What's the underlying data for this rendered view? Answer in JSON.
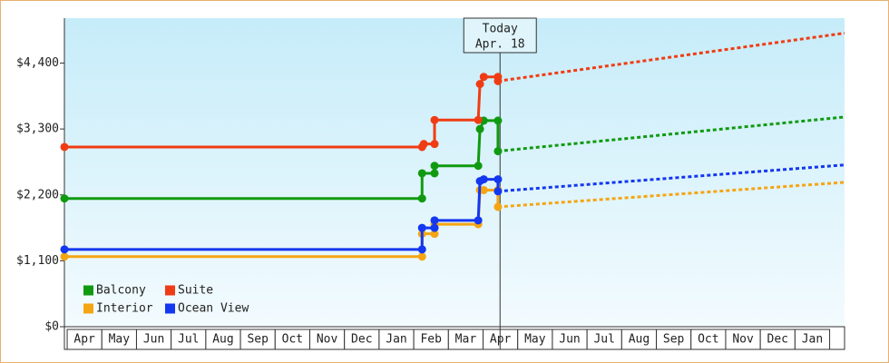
{
  "chart_data": {
    "type": "line",
    "categories": [
      "Apr",
      "May",
      "Jun",
      "Jul",
      "Aug",
      "Sep",
      "Oct",
      "Nov",
      "Dec",
      "Jan",
      "Feb",
      "Mar",
      "Apr",
      "May",
      "Jun",
      "Jul",
      "Aug",
      "Sep",
      "Oct",
      "Nov",
      "Dec",
      "Jan"
    ],
    "xlim": [
      -0.08,
      22.43
    ],
    "ylim": [
      0,
      5150
    ],
    "yticks": [
      {
        "value": 0,
        "label": "$0"
      },
      {
        "value": 1100,
        "label": "$1,100"
      },
      {
        "value": 2200,
        "label": "$2,200"
      },
      {
        "value": 3300,
        "label": "$3,300"
      },
      {
        "value": 4400,
        "label": "$4,400"
      }
    ],
    "legend": "lower left",
    "today": {
      "x": 12.49,
      "label": [
        "Today",
        "Apr. 18"
      ]
    },
    "series": [
      {
        "name": "Balcony",
        "color": "#109a10",
        "x": [
          -0.08,
          10.24,
          10.24,
          10.6,
          10.6,
          11.86,
          11.91,
          12.02,
          12.43,
          12.43
        ],
        "values": [
          2140,
          2140,
          2560,
          2560,
          2685,
          2685,
          3300,
          3440,
          3440,
          2930
        ],
        "forecast": {
          "x": [
            12.43,
            22.43
          ],
          "values": [
            2930,
            3500
          ]
        }
      },
      {
        "name": "Suite",
        "color": "#f03c14",
        "x": [
          -0.08,
          10.24,
          10.29,
          10.6,
          10.6,
          11.86,
          11.91,
          12.02,
          12.43,
          12.43
        ],
        "values": [
          3000,
          3000,
          3050,
          3050,
          3450,
          3450,
          4050,
          4170,
          4170,
          4100
        ],
        "forecast": {
          "x": [
            12.43,
            22.43
          ],
          "values": [
            4100,
            4900
          ]
        }
      },
      {
        "name": "Interior",
        "color": "#f5a514",
        "x": [
          -0.08,
          10.24,
          10.24,
          10.6,
          10.6,
          11.86,
          11.91,
          12.02,
          12.43,
          12.43
        ],
        "values": [
          1170,
          1170,
          1550,
          1550,
          1710,
          1710,
          2280,
          2280,
          2280,
          2000
        ],
        "forecast": {
          "x": [
            12.43,
            22.43
          ],
          "values": [
            2000,
            2410
          ]
        }
      },
      {
        "name": "Ocean View",
        "color": "#1437f0",
        "x": [
          -0.08,
          10.24,
          10.24,
          10.6,
          10.6,
          11.86,
          11.91,
          12.02,
          12.43,
          12.43
        ],
        "values": [
          1290,
          1290,
          1650,
          1650,
          1775,
          1775,
          2430,
          2460,
          2460,
          2260
        ],
        "forecast": {
          "x": [
            12.43,
            22.43
          ],
          "values": [
            2260,
            2700
          ]
        }
      }
    ]
  }
}
